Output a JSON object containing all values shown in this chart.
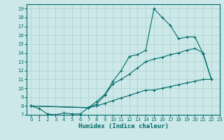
{
  "xlabel": "Humidex (Indice chaleur)",
  "bg_color": "#cde8e8",
  "grid_color": "#b0d4d4",
  "line_color": "#006b6b",
  "xlim": [
    -0.5,
    23
  ],
  "ylim": [
    7,
    19.5
  ],
  "xticks": [
    0,
    1,
    2,
    3,
    4,
    5,
    6,
    7,
    8,
    9,
    10,
    11,
    12,
    13,
    14,
    15,
    16,
    17,
    18,
    19,
    20,
    21,
    22,
    23
  ],
  "yticks": [
    7,
    8,
    9,
    10,
    11,
    12,
    13,
    14,
    15,
    16,
    17,
    18,
    19
  ],
  "line1_x": [
    0,
    1,
    2,
    3,
    4,
    5,
    6,
    7,
    8,
    9,
    10,
    11,
    12,
    13,
    14,
    15,
    16,
    17,
    18,
    19,
    20,
    21,
    22
  ],
  "line1_y": [
    8.0,
    7.7,
    7.1,
    7.0,
    7.2,
    7.1,
    7.1,
    7.8,
    8.5,
    9.3,
    10.8,
    12.0,
    13.6,
    13.8,
    14.3,
    19.0,
    18.0,
    17.1,
    15.6,
    15.8,
    15.8,
    13.9,
    11.0
  ],
  "line2_x": [
    0,
    7,
    8,
    9,
    10,
    11,
    12,
    13,
    14,
    15,
    16,
    17,
    18,
    19,
    20,
    21,
    22
  ],
  "line2_y": [
    8.0,
    7.8,
    8.2,
    9.2,
    10.5,
    11.0,
    11.6,
    12.3,
    13.0,
    13.3,
    13.5,
    13.8,
    14.0,
    14.3,
    14.5,
    14.0,
    11.0
  ],
  "line3_x": [
    0,
    7,
    8,
    9,
    10,
    11,
    12,
    13,
    14,
    15,
    16,
    17,
    18,
    19,
    20,
    21,
    22
  ],
  "line3_y": [
    8.0,
    7.8,
    8.0,
    8.3,
    8.6,
    8.9,
    9.2,
    9.5,
    9.8,
    9.8,
    10.0,
    10.2,
    10.4,
    10.6,
    10.8,
    11.0,
    11.0
  ]
}
